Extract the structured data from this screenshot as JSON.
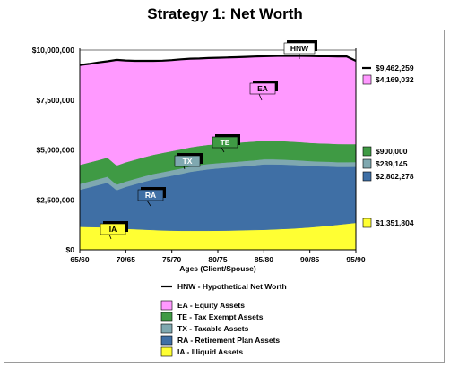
{
  "title": "Strategy 1: Net Worth",
  "chart_data": {
    "type": "area",
    "title": "Strategy 1: Net Worth",
    "xlabel": "Ages (Client/Spouse)",
    "ylabel": "",
    "x": [
      "65/60",
      "66/61",
      "67/62",
      "68/63",
      "69/64",
      "70/65",
      "71/66",
      "72/67",
      "73/68",
      "74/69",
      "75/70",
      "76/71",
      "77/72",
      "78/73",
      "79/74",
      "80/75",
      "81/76",
      "82/77",
      "83/78",
      "84/79",
      "85/80",
      "86/81",
      "87/82",
      "88/83",
      "89/84",
      "90/85",
      "91/86",
      "92/87",
      "93/88",
      "94/89",
      "95/90"
    ],
    "x_ticks": [
      "65/60",
      "70/65",
      "75/70",
      "80/75",
      "85/80",
      "90/85",
      "95/90"
    ],
    "ylim": [
      0,
      10000000
    ],
    "y_ticks": [
      "$0",
      "$2,500,000",
      "$5,000,000",
      "$7,500,000",
      "$10,000,000"
    ],
    "y_tick_values": [
      0,
      2500000,
      5000000,
      7500000,
      10000000
    ],
    "grid": "horizontal",
    "series": [
      {
        "name": "IA - Illiquid Assets",
        "color": "#ffff33",
        "values": [
          1150000,
          1140000,
          1130000,
          1110000,
          1080000,
          1050000,
          1030000,
          1010000,
          990000,
          970000,
          960000,
          950000,
          950000,
          950000,
          950000,
          955000,
          960000,
          970000,
          980000,
          990000,
          1000000,
          1020000,
          1040000,
          1060000,
          1090000,
          1120000,
          1160000,
          1200000,
          1250000,
          1300000,
          1351804
        ]
      },
      {
        "name": "RA - Retirement Plan Assets",
        "color": "#3f6fa5",
        "values": [
          1850000,
          1980000,
          2110000,
          2250000,
          1900000,
          2100000,
          2250000,
          2400000,
          2540000,
          2650000,
          2750000,
          2850000,
          2950000,
          3020000,
          3080000,
          3120000,
          3150000,
          3180000,
          3210000,
          3240000,
          3280000,
          3260000,
          3230000,
          3190000,
          3140000,
          3080000,
          3020000,
          2970000,
          2900000,
          2850000,
          2802278
        ]
      },
      {
        "name": "TX - Taxable Assets",
        "color": "#7fa8b0",
        "values": [
          300000,
          300000,
          300000,
          300000,
          280000,
          270000,
          270000,
          270000,
          270000,
          270000,
          270000,
          270000,
          270000,
          270000,
          270000,
          265000,
          265000,
          260000,
          260000,
          255000,
          255000,
          252000,
          250000,
          248000,
          246000,
          245000,
          243000,
          242000,
          241000,
          240000,
          239145
        ]
      },
      {
        "name": "TE - Tax Exempt Assets",
        "color": "#3f9a44",
        "values": [
          950000,
          950000,
          950000,
          960000,
          960000,
          960000,
          960000,
          960000,
          960000,
          960000,
          960000,
          960000,
          960000,
          960000,
          960000,
          955000,
          950000,
          950000,
          945000,
          940000,
          935000,
          930000,
          925000,
          920000,
          915000,
          910000,
          908000,
          905000,
          903000,
          901000,
          900000
        ]
      },
      {
        "name": "EA - Equity Assets",
        "color": "#ff99ff",
        "values": [
          5000000,
          4940000,
          4890000,
          4820000,
          5290000,
          5100000,
          4950000,
          4820000,
          4700000,
          4620000,
          4560000,
          4510000,
          4440000,
          4390000,
          4350000,
          4325000,
          4305000,
          4280000,
          4265000,
          4250000,
          4220000,
          4240000,
          4269000,
          4292000,
          4319000,
          4345000,
          4359000,
          4373000,
          4386000,
          4389000,
          4169032
        ]
      }
    ],
    "hnw": {
      "name": "HNW - Hypothetical Net Worth",
      "values": [
        9250000,
        9310000,
        9380000,
        9440000,
        9510000,
        9480000,
        9460000,
        9460000,
        9460000,
        9470000,
        9500000,
        9540000,
        9570000,
        9580000,
        9600000,
        9615000,
        9630000,
        9640000,
        9660000,
        9675000,
        9690000,
        9700000,
        9714000,
        9710000,
        9710000,
        9700000,
        9690000,
        9690000,
        9680000,
        9680000,
        9462259
      ]
    },
    "end_values": {
      "hnw": "$9,462,259",
      "ea": "$4,169,032",
      "te": "$900,000",
      "tx": "$239,145",
      "ra": "$2,802,278",
      "ia": "$1,351,804"
    },
    "callouts": [
      "HNW",
      "EA",
      "TE",
      "TX",
      "RA",
      "IA"
    ],
    "legend_placement": "bottom"
  }
}
